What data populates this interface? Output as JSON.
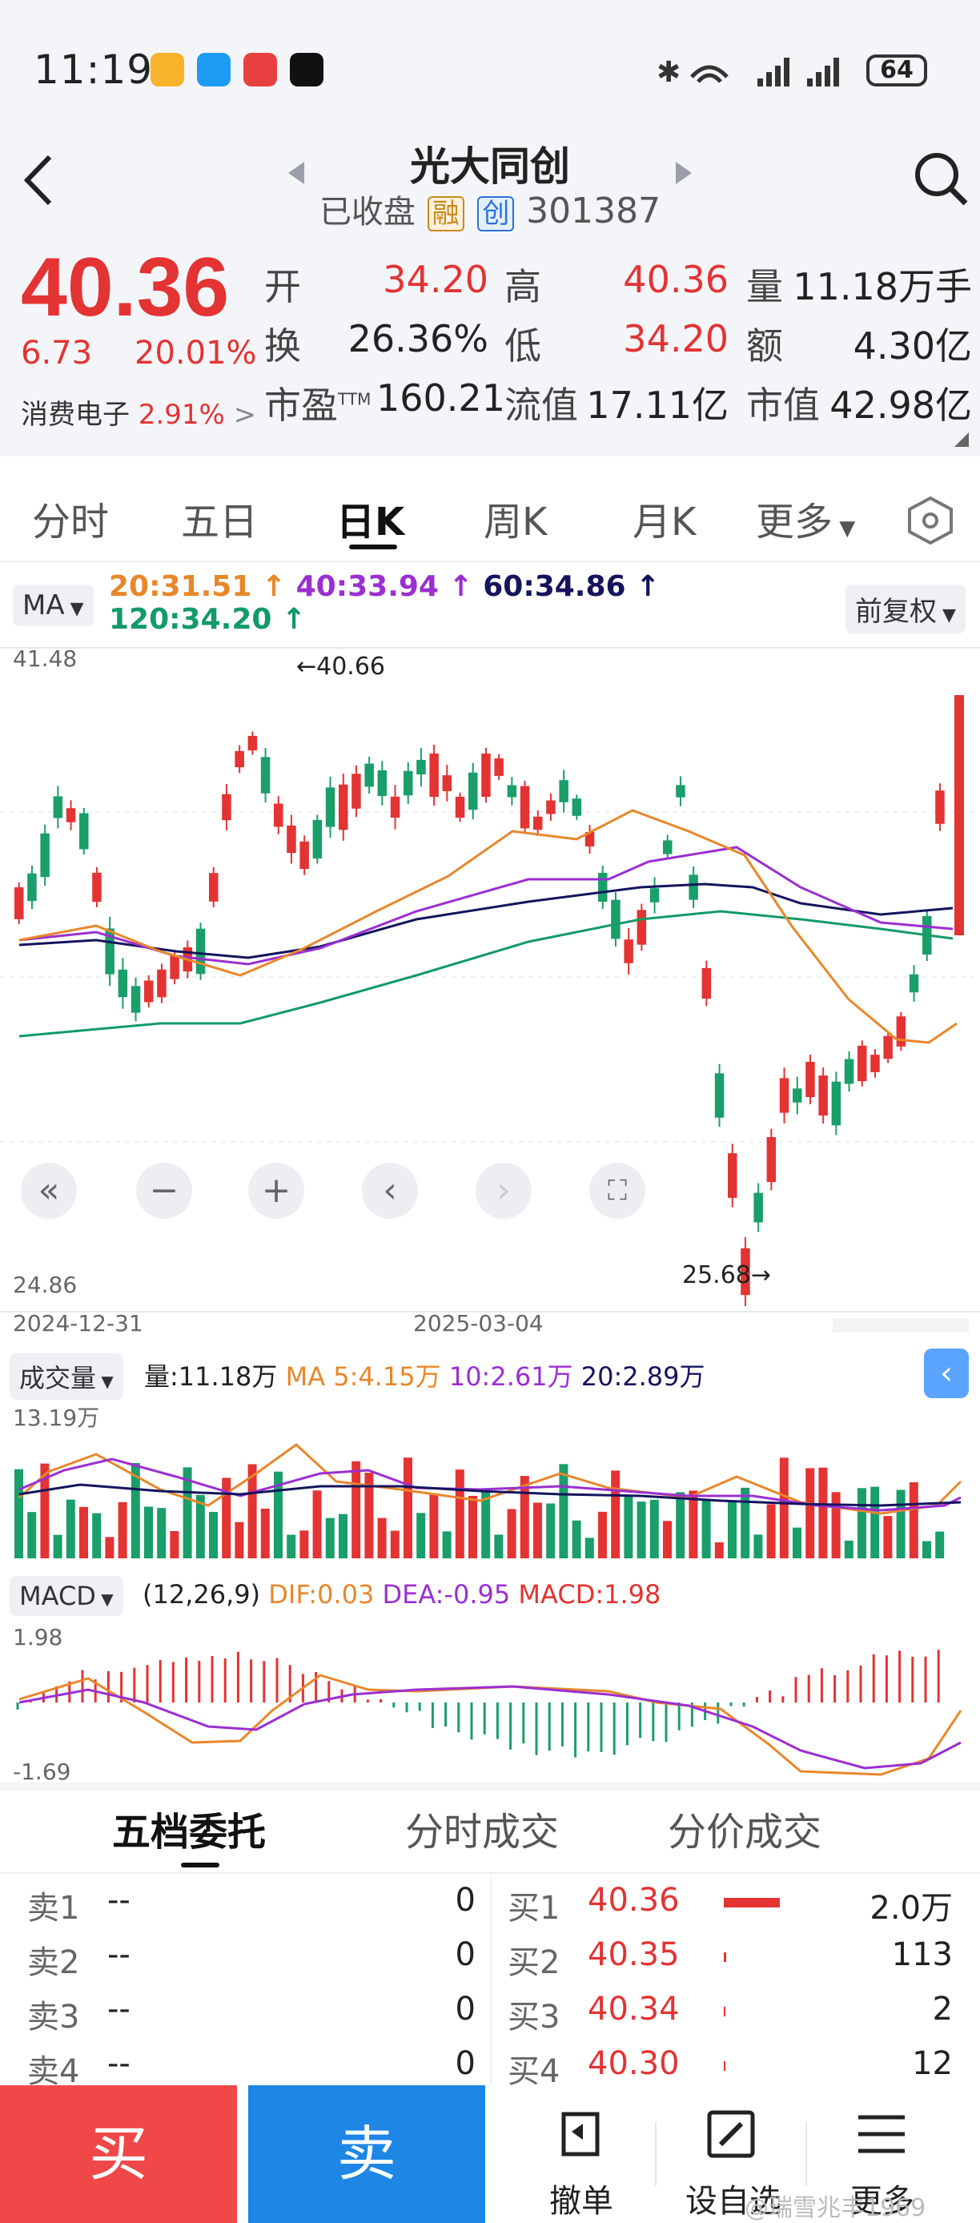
{
  "status": {
    "time": "11:19",
    "battery": "64"
  },
  "header": {
    "title": "光大同创",
    "status": "已收盘",
    "tag_margin": "融",
    "tag_board": "创",
    "code": "301387"
  },
  "quote": {
    "price": "40.36",
    "change": "6.73",
    "change_pct": "20.01%",
    "sector": "消费电子",
    "sector_pct": "2.91%",
    "open_label": "开",
    "open": "34.20",
    "high_label": "高",
    "high": "40.36",
    "vol_label": "量",
    "volume": "11.18万手",
    "turnover_label": "换",
    "turnover": "26.36%",
    "low_label": "低",
    "low": "34.20",
    "amount_label": "额",
    "amount": "4.30亿",
    "pe_label": "市盈",
    "pe_sup": "TTM",
    "pe": "160.21",
    "float_label": "流值",
    "float_value": "17.11亿",
    "mcap_label": "市值",
    "mcap": "42.98亿"
  },
  "tabs": [
    "分时",
    "五日",
    "日K",
    "周K",
    "月K",
    "更多"
  ],
  "kline": {
    "ma_selector": "MA",
    "ma20": "20:31.51 ↑",
    "ma40": "40:33.94 ↑",
    "ma60": "60:34.86 ↑",
    "ma120": "120:34.20 ↑",
    "adjust": "前复权",
    "y_max": "41.48",
    "y_min": "24.86",
    "high_mark": "←40.66",
    "low_mark": "25.68→",
    "date_start": "2024-12-31",
    "date_mid": "2025-03-04"
  },
  "volume": {
    "selector": "成交量",
    "vol": "量:11.18万",
    "ma5": "MA 5:4.15万",
    "ma10": "10:2.61万",
    "ma20": "20:2.89万",
    "y_max": "13.19万"
  },
  "macd": {
    "selector": "MACD",
    "params": "(12,26,9)",
    "dif": "DIF:0.03",
    "dea": "DEA:-0.95",
    "macd": "MACD:1.98",
    "y_max": "1.98",
    "y_min": "-1.69"
  },
  "orderbook": {
    "tabs": [
      "五档委托",
      "分时成交",
      "分价成交"
    ],
    "sell": [
      {
        "label": "卖1",
        "price": "--",
        "qty": "0"
      },
      {
        "label": "卖2",
        "price": "--",
        "qty": "0"
      },
      {
        "label": "卖3",
        "price": "--",
        "qty": "0"
      },
      {
        "label": "卖4",
        "price": "--",
        "qty": "0"
      }
    ],
    "buy": [
      {
        "label": "买1",
        "price": "40.36",
        "qty": "2.0万"
      },
      {
        "label": "买2",
        "price": "40.35",
        "qty": "113"
      },
      {
        "label": "买3",
        "price": "40.34",
        "qty": "2"
      },
      {
        "label": "买4",
        "price": "40.30",
        "qty": "12"
      }
    ]
  },
  "actions": {
    "buy": "买",
    "sell": "卖",
    "cancel": "撤单",
    "set_fav": "设自选",
    "more": "更多"
  },
  "watermark": "@瑞雪兆丰1969",
  "colors": {
    "up": "#e33333",
    "down": "#1a9e6a",
    "ma20": "#e8872a",
    "ma40": "#9b2fd1",
    "ma60": "#14145e",
    "ma120": "#129a6a"
  }
}
